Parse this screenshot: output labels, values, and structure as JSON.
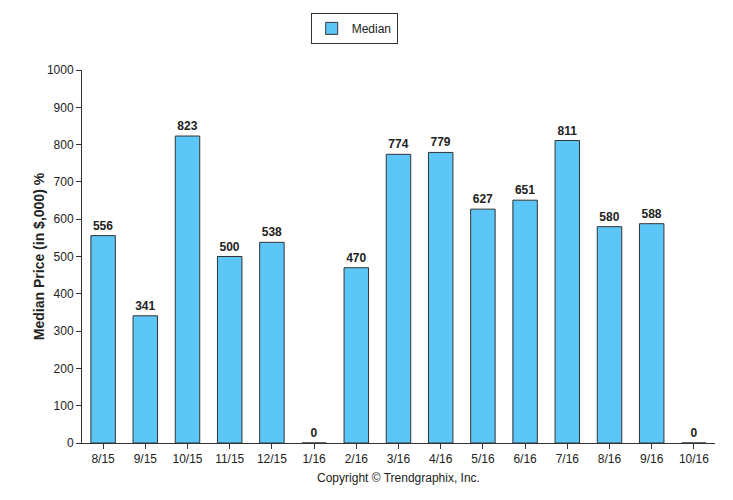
{
  "chart_data": {
    "type": "bar",
    "categories": [
      "8/15",
      "9/15",
      "10/15",
      "11/15",
      "12/15",
      "1/16",
      "2/16",
      "3/16",
      "4/16",
      "5/16",
      "6/16",
      "7/16",
      "8/16",
      "9/16",
      "10/16"
    ],
    "series": [
      {
        "name": "Median",
        "color": "#5cc6f7",
        "values": [
          556,
          341,
          823,
          500,
          538,
          0,
          470,
          774,
          779,
          627,
          651,
          811,
          580,
          588,
          0
        ]
      }
    ],
    "ylabel": "Median Price (in $,000) %",
    "xlabel": "Copyright © Trendgraphix, Inc.",
    "ylim": [
      0,
      1000
    ],
    "yticks": [
      0,
      100,
      200,
      300,
      400,
      500,
      600,
      700,
      800,
      900,
      1000
    ],
    "grid": false,
    "legend": "top",
    "data_labels": true
  }
}
